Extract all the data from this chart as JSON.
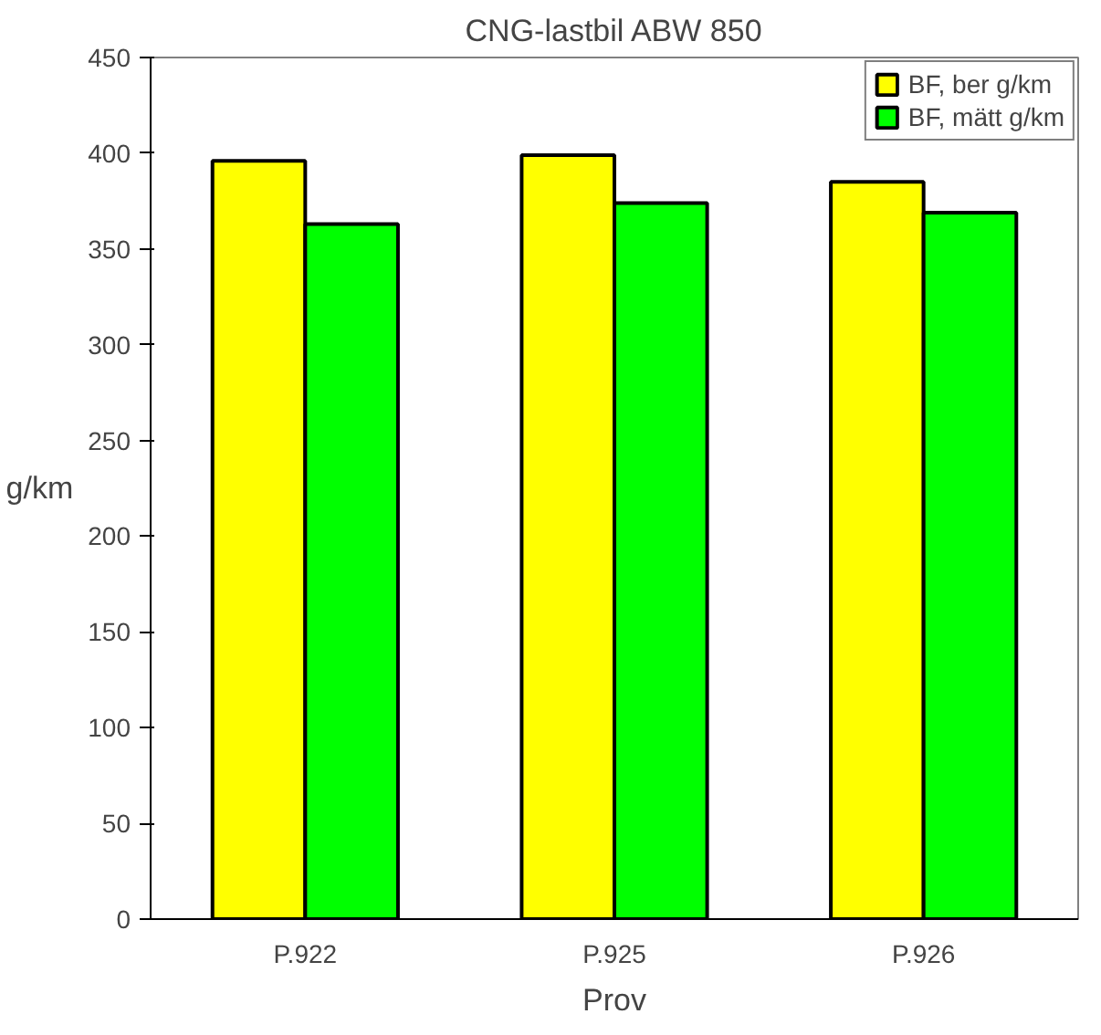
{
  "chart_data": {
    "type": "bar",
    "title": "CNG-lastbil ABW 850",
    "ylabel": "g/km",
    "xlabel": "Prov",
    "categories": [
      "P.922",
      "P.925",
      "P.926"
    ],
    "series": [
      {
        "name": "BF, ber g/km",
        "color": "#ffff00",
        "values": [
          396,
          399,
          385
        ]
      },
      {
        "name": "BF, mätt g/km",
        "color": "#00ff00",
        "values": [
          363,
          374,
          369
        ]
      }
    ],
    "ylim": [
      0,
      450
    ],
    "yticks": [
      0,
      50,
      100,
      150,
      200,
      250,
      300,
      350,
      400,
      450
    ],
    "grid": false,
    "legend": "top right"
  }
}
